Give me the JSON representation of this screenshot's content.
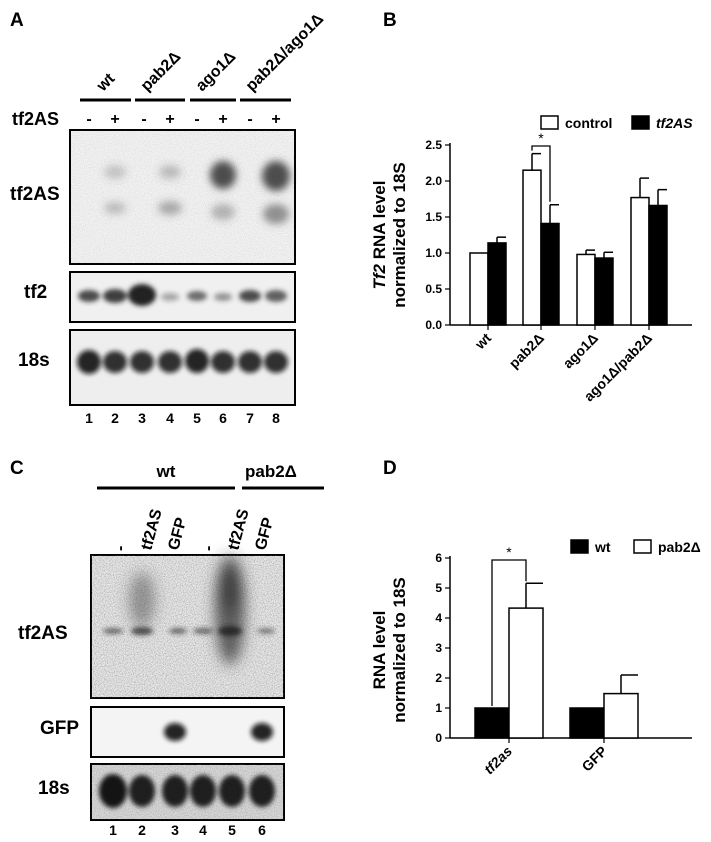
{
  "panelA": {
    "letter": "A",
    "groups": [
      "wt",
      "pab2Δ",
      "ago1Δ",
      "pab2Δ/ago1Δ"
    ],
    "treatment_label": "tf2AS",
    "treatment_signs": [
      "-",
      "+",
      "-",
      "+",
      "-",
      "+",
      "-",
      "+"
    ],
    "blots": [
      "tf2AS",
      "tf2",
      "18s"
    ],
    "lanes": [
      "1",
      "2",
      "3",
      "4",
      "5",
      "6",
      "7",
      "8"
    ]
  },
  "panelC": {
    "letter": "C",
    "groups": [
      "wt",
      "pab2Δ"
    ],
    "lane_labels": [
      "-",
      "tf2AS",
      "GFP",
      "-",
      "tf2AS",
      "GFP"
    ],
    "blots": [
      "tf2AS",
      "GFP",
      "18s"
    ],
    "lanes": [
      "1",
      "2",
      "3",
      "4",
      "5",
      "6"
    ]
  },
  "chart_data": [
    {
      "panel": "B",
      "type": "bar",
      "ylabel_italic": "Tf2",
      "ylabel_rest": " RNA level",
      "ylabel_line2": "normalized to 18S",
      "categories": [
        "wt",
        "pab2Δ",
        "ago1Δ",
        "ago1Δ/pab2Δ"
      ],
      "series": [
        {
          "name": "control",
          "values": [
            1.0,
            2.15,
            0.98,
            1.77
          ],
          "errors": [
            0.0,
            0.23,
            0.06,
            0.27
          ],
          "fill": "#ffffff"
        },
        {
          "name": "tf2AS",
          "values": [
            1.14,
            1.41,
            0.93,
            1.66
          ],
          "errors": [
            0.08,
            0.26,
            0.08,
            0.22
          ],
          "fill": "#000000"
        }
      ],
      "ylim": [
        0.0,
        2.5
      ],
      "yticks": [
        "0.0",
        "0.5",
        "1.0",
        "1.5",
        "2.0",
        "2.5"
      ],
      "significance": "*",
      "legend": "top-right"
    },
    {
      "panel": "D",
      "type": "bar",
      "ylabel_line1": "RNA level",
      "ylabel_line2": "normalized to 18S",
      "categories": [
        "tf2as",
        "GFP"
      ],
      "series": [
        {
          "name": "wt",
          "values": [
            1.0,
            1.0
          ],
          "errors": [
            0.0,
            0.0
          ],
          "fill": "#000000"
        },
        {
          "name": "pab2Δ",
          "values": [
            4.33,
            1.48
          ],
          "errors": [
            0.83,
            0.62
          ],
          "fill": "#ffffff"
        }
      ],
      "ylim": [
        0,
        6
      ],
      "yticks": [
        "0",
        "1",
        "2",
        "3",
        "4",
        "5",
        "6"
      ],
      "significance": "*",
      "legend": "top-right"
    }
  ]
}
